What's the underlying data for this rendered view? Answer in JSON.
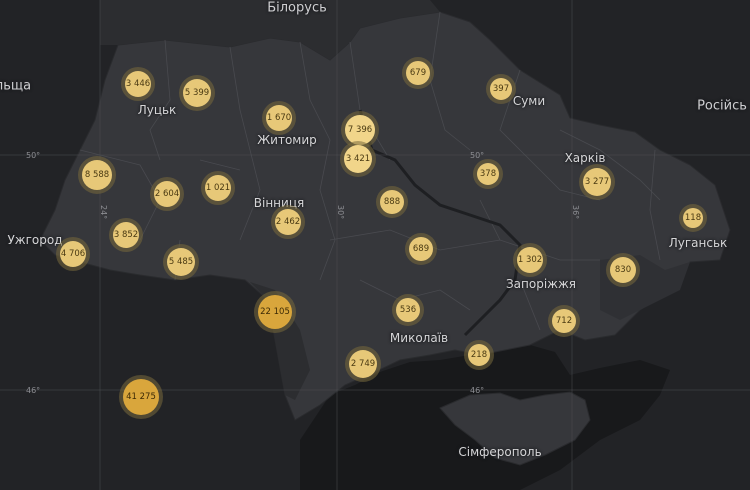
{
  "map": {
    "countries": {
      "belarus": "Білорусь",
      "russia": "Російсь",
      "poland": "льща"
    },
    "cities": {
      "lutsk": "Луцьк",
      "zhytomyr": "Житомир",
      "sumy": "Суми",
      "kharkiv": "Харків",
      "vinnytsia": "Вінниця",
      "uzhhorod": "Ужгород",
      "luhansk": "Луганськ",
      "zaporizhzhia": "Запоріжжя",
      "mykolaiv": "Миколаїв",
      "simferopol": "Сімферополь"
    },
    "graticule": {
      "lat50_left": "50°",
      "lat50_mid": "50°",
      "lat46_left": "46°",
      "lat46_mid": "46°",
      "lon24": "24°",
      "lon30": "30°",
      "lon36": "36°"
    },
    "clusters": [
      {
        "id": "c1",
        "value": "3 446"
      },
      {
        "id": "c2",
        "value": "5 399"
      },
      {
        "id": "c3",
        "value": "679"
      },
      {
        "id": "c4",
        "value": "397"
      },
      {
        "id": "c5",
        "value": "1 670"
      },
      {
        "id": "c6",
        "value": "7 396"
      },
      {
        "id": "c7",
        "value": "3 421"
      },
      {
        "id": "c8",
        "value": "8 588"
      },
      {
        "id": "c9",
        "value": "2 604"
      },
      {
        "id": "c10",
        "value": "1 021"
      },
      {
        "id": "c11",
        "value": "378"
      },
      {
        "id": "c12",
        "value": "3 277"
      },
      {
        "id": "c13",
        "value": "888"
      },
      {
        "id": "c14",
        "value": "2 462"
      },
      {
        "id": "c15",
        "value": "118"
      },
      {
        "id": "c16",
        "value": "3 852"
      },
      {
        "id": "c17",
        "value": "4 706"
      },
      {
        "id": "c18",
        "value": "5 485"
      },
      {
        "id": "c19",
        "value": "689"
      },
      {
        "id": "c20",
        "value": "1 302"
      },
      {
        "id": "c21",
        "value": "830"
      },
      {
        "id": "c22",
        "value": "22 105"
      },
      {
        "id": "c23",
        "value": "536"
      },
      {
        "id": "c24",
        "value": "712"
      },
      {
        "id": "c25",
        "value": "218"
      },
      {
        "id": "c26",
        "value": "2 749"
      },
      {
        "id": "c27",
        "value": "41 275"
      }
    ]
  }
}
